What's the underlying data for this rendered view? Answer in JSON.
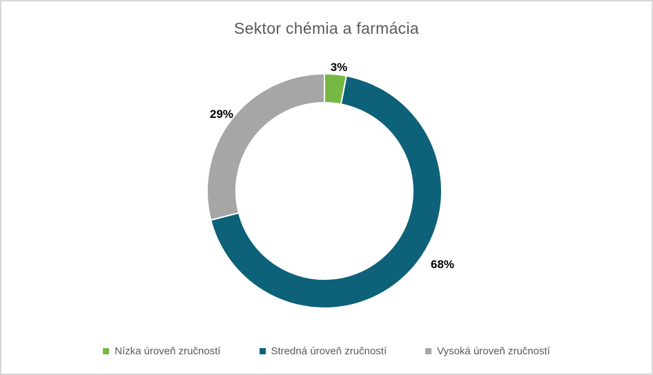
{
  "chart_data": {
    "type": "pie",
    "subtype": "donut",
    "title": "Sektor chémia a farmácia",
    "categories": [
      "Nízka úroveň zručností",
      "Stredná úroveň zručností",
      "Vysoká úroveň zručností"
    ],
    "values": [
      3,
      68,
      29
    ],
    "data_labels": [
      "3%",
      "68%",
      "29%"
    ],
    "colors": [
      "#76b843",
      "#0d6179",
      "#a6a6a6"
    ],
    "hole_ratio": 0.75,
    "start_angle_deg": 0,
    "direction": "clockwise",
    "legend_position": "bottom",
    "title_color": "#595959",
    "legend_text_color": "#595959",
    "data_label_color": "#000000",
    "frame_border_color": "#d6d6d6",
    "background_color": "#ffffff"
  }
}
